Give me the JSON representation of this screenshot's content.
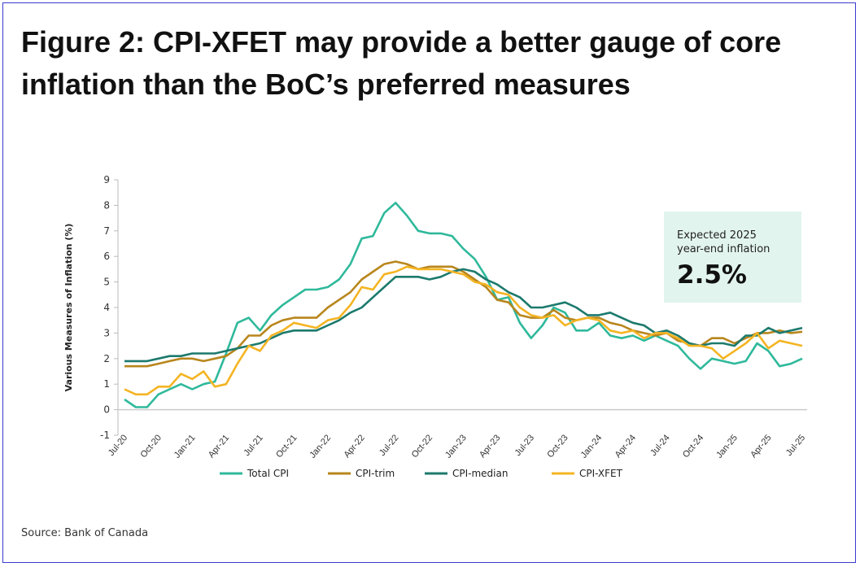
{
  "title": "Figure 2: CPI-XFET may provide a better gauge of core inflation than the BoC’s preferred measures",
  "source": "Source: Bank of Canada",
  "callout": {
    "line1": "Expected 2025",
    "line2": "year-end inflation",
    "value": "2.5%"
  },
  "chart_data": {
    "type": "line",
    "title": "Figure 2: CPI-XFET may provide a better gauge of core inflation than the BoC’s preferred measures",
    "xlabel": "",
    "ylabel": "Various Measures of Inflation (%)",
    "ylim": [
      -1,
      9
    ],
    "yticks": [
      "-1",
      "0",
      "1",
      "2",
      "3",
      "4",
      "5",
      "6",
      "7",
      "8",
      "9"
    ],
    "xtick_labels": [
      "Jul-20",
      "Oct-20",
      "Jan-21",
      "Apr-21",
      "Jul-21",
      "Oct-21",
      "Jan-22",
      "Apr-22",
      "Jul-22",
      "Oct-22",
      "Jan-23",
      "Apr-23",
      "Jul-23",
      "Oct-23",
      "Jan-24",
      "Apr-24",
      "Jul-24",
      "Oct-24",
      "Jan-25",
      "Apr-25",
      "Jul-25"
    ],
    "x_start": "Jul-20",
    "x_end": "Jul-25",
    "frequency": "monthly",
    "grid": false,
    "legend_position": "bottom",
    "series": [
      {
        "name": "Total CPI",
        "color": "#2fb99b",
        "values": [
          0.4,
          0.1,
          0.1,
          0.6,
          0.8,
          1.0,
          0.8,
          1.0,
          1.1,
          2.2,
          3.4,
          3.6,
          3.1,
          3.7,
          4.1,
          4.4,
          4.7,
          4.7,
          4.8,
          5.1,
          5.7,
          6.7,
          6.8,
          7.7,
          8.1,
          7.6,
          7.0,
          6.9,
          6.9,
          6.8,
          6.3,
          5.9,
          5.2,
          4.3,
          4.4,
          3.4,
          2.8,
          3.3,
          4.0,
          3.8,
          3.1,
          3.1,
          3.4,
          2.9,
          2.8,
          2.9,
          2.7,
          2.9,
          2.7,
          2.5,
          2.0,
          1.6,
          2.0,
          1.9,
          1.8,
          1.9,
          2.6,
          2.3,
          1.7,
          1.8,
          2.0
        ]
      },
      {
        "name": "CPI-trim",
        "color": "#b8861c",
        "values": [
          1.7,
          1.7,
          1.7,
          1.8,
          1.9,
          2.0,
          2.0,
          1.9,
          2.0,
          2.1,
          2.4,
          2.9,
          2.9,
          3.3,
          3.5,
          3.6,
          3.6,
          3.6,
          4.0,
          4.3,
          4.6,
          5.1,
          5.4,
          5.7,
          5.8,
          5.7,
          5.5,
          5.6,
          5.6,
          5.6,
          5.4,
          5.1,
          4.8,
          4.3,
          4.2,
          3.7,
          3.6,
          3.6,
          3.9,
          3.6,
          3.5,
          3.6,
          3.6,
          3.4,
          3.3,
          3.1,
          3.0,
          2.9,
          3.0,
          2.7,
          2.6,
          2.5,
          2.8,
          2.8,
          2.6,
          2.8,
          3.0,
          3.0,
          3.1,
          3.0,
          3.05
        ]
      },
      {
        "name": "CPI-median",
        "color": "#1c7a6d",
        "values": [
          1.9,
          1.9,
          1.9,
          2.0,
          2.1,
          2.1,
          2.2,
          2.2,
          2.2,
          2.3,
          2.4,
          2.5,
          2.6,
          2.8,
          3.0,
          3.1,
          3.1,
          3.1,
          3.3,
          3.5,
          3.8,
          4.0,
          4.4,
          4.8,
          5.2,
          5.2,
          5.2,
          5.1,
          5.2,
          5.4,
          5.5,
          5.4,
          5.1,
          4.9,
          4.6,
          4.4,
          4.0,
          4.0,
          4.1,
          4.2,
          4.0,
          3.7,
          3.7,
          3.8,
          3.6,
          3.4,
          3.3,
          3.0,
          3.1,
          2.9,
          2.6,
          2.5,
          2.6,
          2.6,
          2.5,
          2.9,
          2.9,
          3.2,
          3.0,
          3.1,
          3.2
        ]
      },
      {
        "name": "CPI-XFET",
        "color": "#f4b423",
        "values": [
          0.8,
          0.6,
          0.6,
          0.9,
          0.9,
          1.4,
          1.2,
          1.5,
          0.9,
          1.0,
          1.8,
          2.5,
          2.3,
          2.9,
          3.1,
          3.4,
          3.3,
          3.2,
          3.5,
          3.6,
          4.1,
          4.8,
          4.7,
          5.3,
          5.4,
          5.6,
          5.5,
          5.5,
          5.5,
          5.4,
          5.3,
          5.0,
          4.9,
          4.6,
          4.5,
          4.0,
          3.7,
          3.6,
          3.7,
          3.3,
          3.5,
          3.6,
          3.5,
          3.1,
          3.0,
          3.1,
          2.8,
          3.0,
          3.0,
          2.8,
          2.5,
          2.5,
          2.4,
          2.0,
          2.3,
          2.6,
          3.0,
          2.4,
          2.7,
          2.6,
          2.5
        ]
      }
    ]
  }
}
